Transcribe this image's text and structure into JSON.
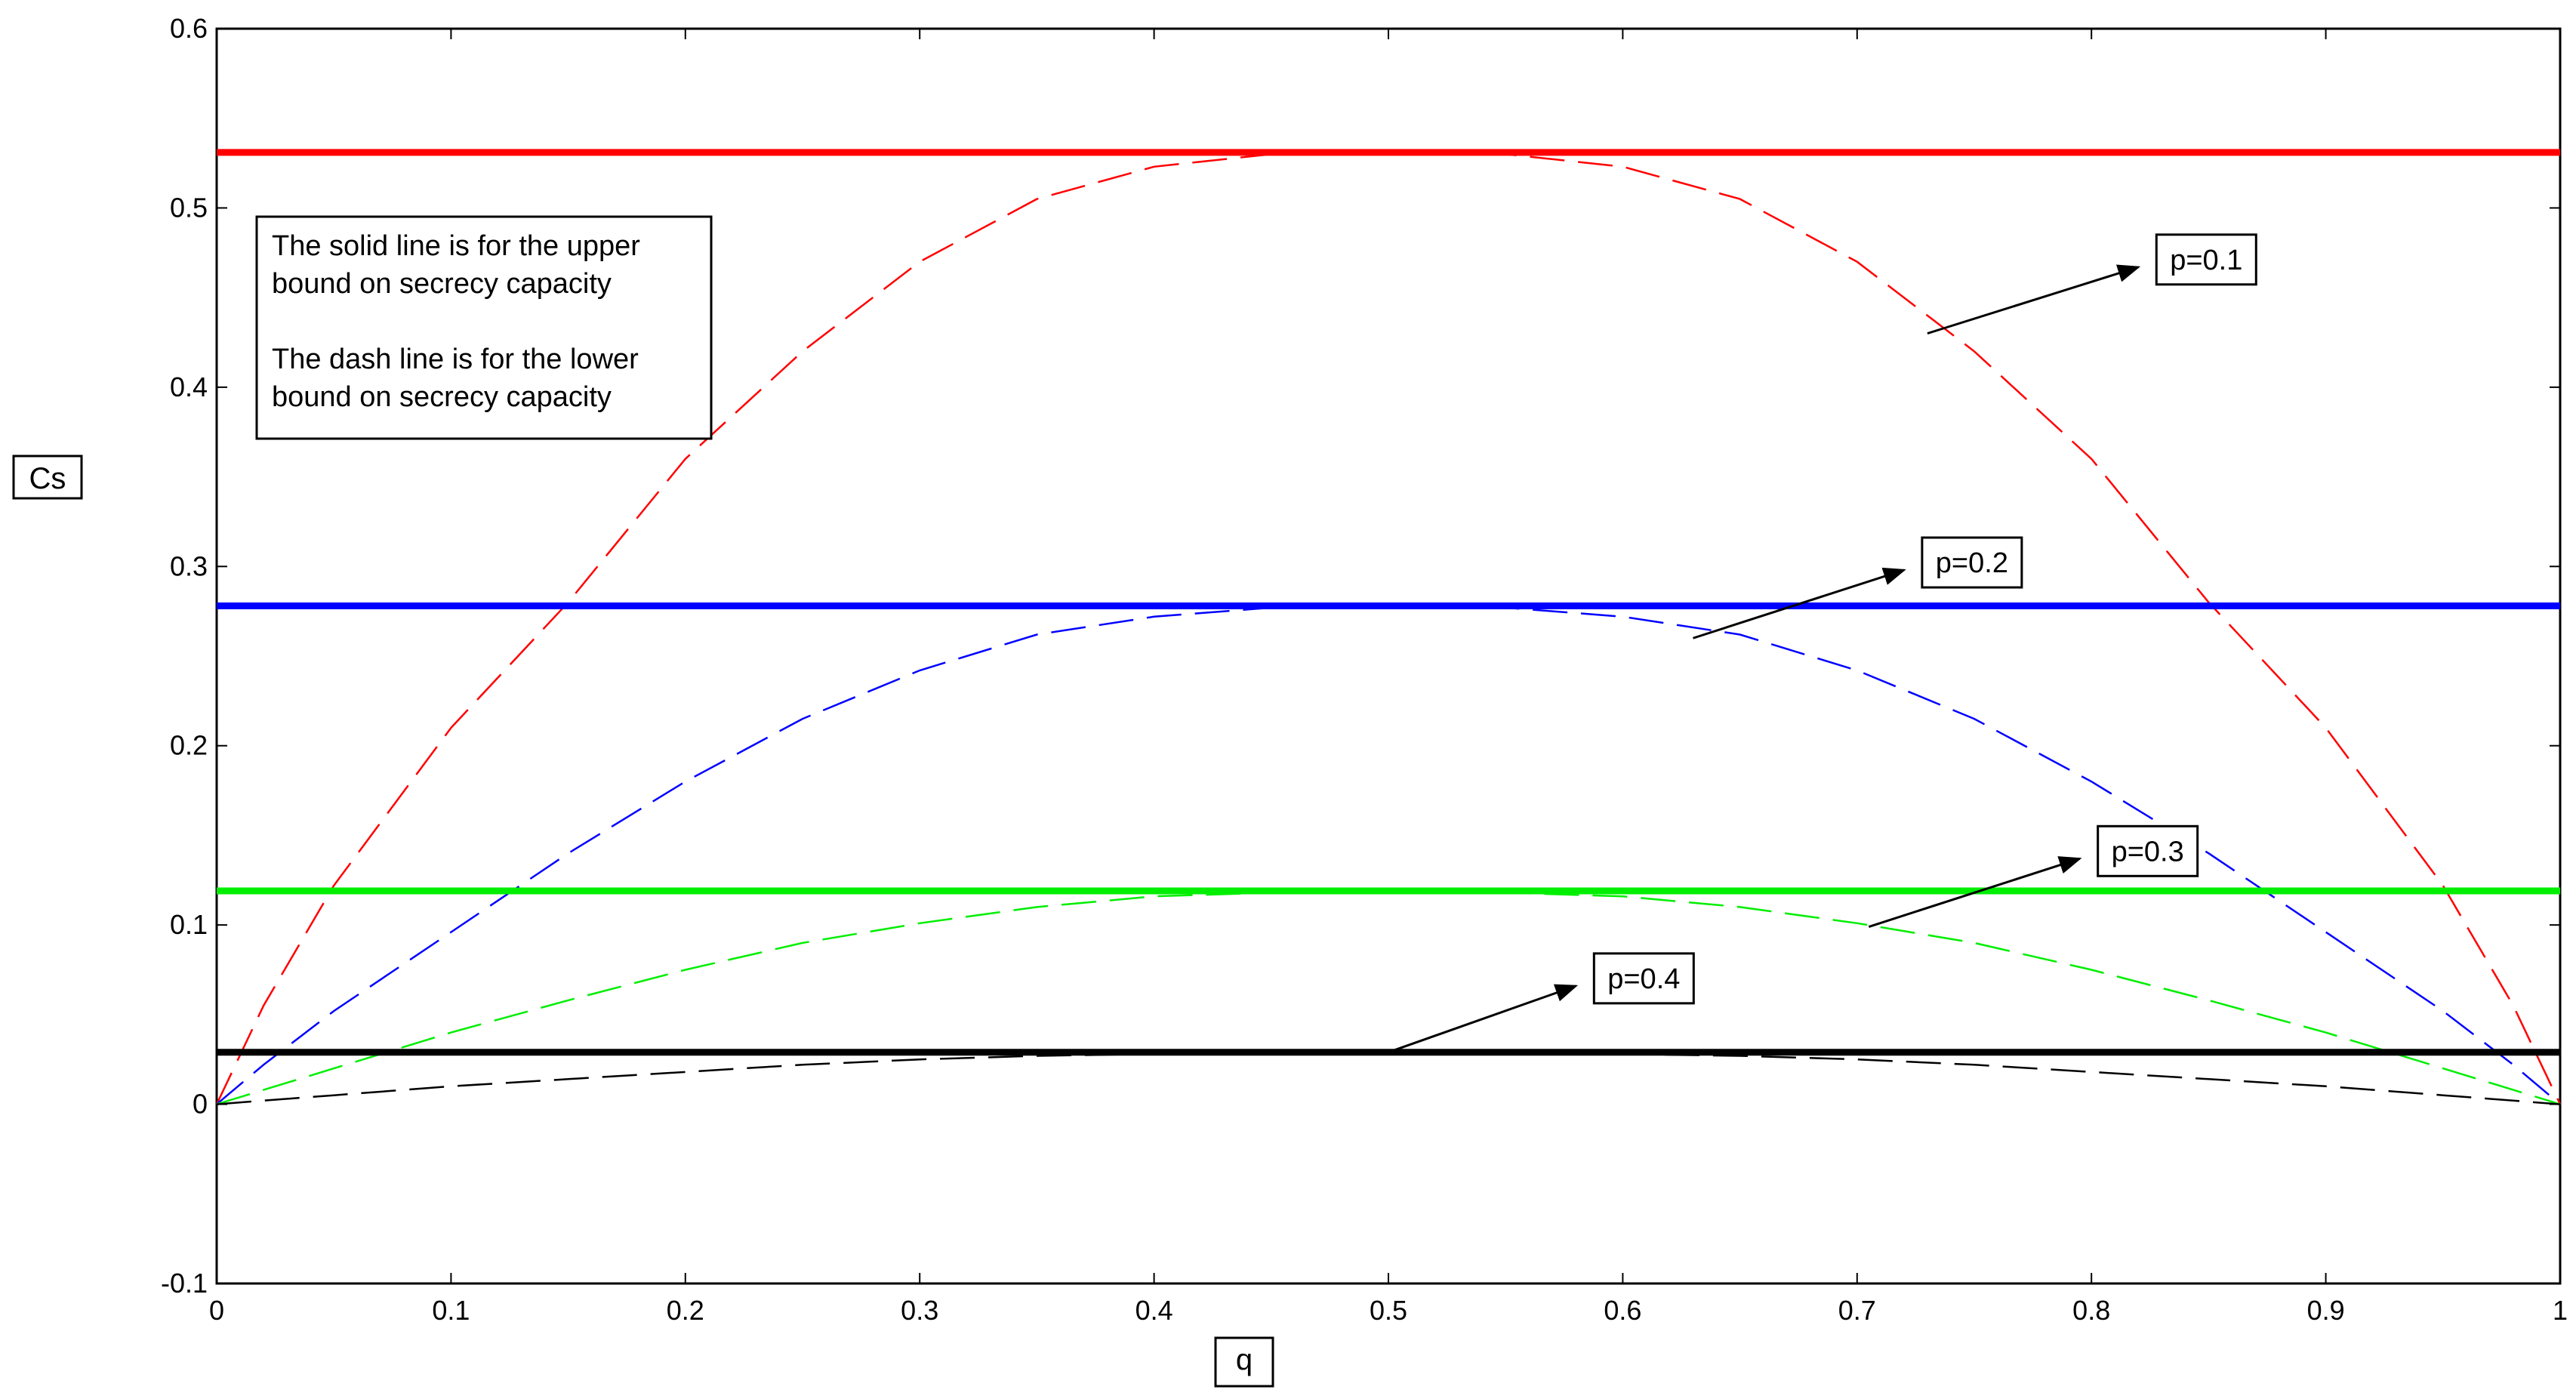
{
  "chart_data": {
    "type": "line",
    "title": "",
    "xlabel": "q",
    "ylabel": "Cs",
    "xlim": [
      0,
      1
    ],
    "ylim": [
      -0.1,
      0.6
    ],
    "x_ticks": [
      0,
      0.1,
      0.2,
      0.3,
      0.4,
      0.5,
      0.6,
      0.7,
      0.8,
      0.9,
      1
    ],
    "x_tick_labels": [
      "0",
      "0.1",
      "0.2",
      "0.3",
      "0.4",
      "0.5",
      "0.6",
      "0.7",
      "0.8",
      "0.9",
      "1"
    ],
    "y_ticks": [
      -0.1,
      0,
      0.1,
      0.2,
      0.3,
      0.4,
      0.5,
      0.6
    ],
    "y_tick_labels": [
      "-0.1",
      "0",
      "0.1",
      "0.2",
      "0.3",
      "0.4",
      "0.5",
      "0.6"
    ],
    "grid": false,
    "note_lines": [
      "The solid line is for the upper",
      "bound on secrecy capacity",
      "",
      "The dash line is for the lower",
      "bound on secrecy capacity"
    ],
    "annotations": [
      {
        "text": "p=0.1",
        "from": [
          0.73,
          0.43
        ],
        "to": [
          0.82,
          0.467
        ]
      },
      {
        "text": "p=0.2",
        "from": [
          0.63,
          0.26
        ],
        "to": [
          0.72,
          0.298
        ]
      },
      {
        "text": "p=0.3",
        "from": [
          0.705,
          0.099
        ],
        "to": [
          0.795,
          0.137
        ]
      },
      {
        "text": "p=0.4",
        "from": [
          0.5,
          0.029
        ],
        "to": [
          0.58,
          0.066
        ]
      }
    ],
    "series": [
      {
        "p": 0.1,
        "color": "#ff0000",
        "upper_bound": 0.531,
        "lower_bound": {
          "x": [
            0,
            0.02,
            0.05,
            0.1,
            0.15,
            0.2,
            0.25,
            0.3,
            0.35,
            0.4,
            0.45,
            0.5,
            0.55,
            0.6,
            0.65,
            0.7,
            0.75,
            0.8,
            0.85,
            0.9,
            0.95,
            0.98,
            1
          ],
          "y": [
            0,
            0.055,
            0.122,
            0.21,
            0.28,
            0.36,
            0.42,
            0.47,
            0.505,
            0.523,
            0.53,
            0.531,
            0.53,
            0.523,
            0.505,
            0.47,
            0.42,
            0.36,
            0.28,
            0.21,
            0.122,
            0.055,
            0
          ]
        }
      },
      {
        "p": 0.2,
        "color": "#0000ff",
        "upper_bound": 0.278,
        "lower_bound": {
          "x": [
            0,
            0.02,
            0.05,
            0.1,
            0.15,
            0.2,
            0.25,
            0.3,
            0.35,
            0.4,
            0.45,
            0.5,
            0.55,
            0.6,
            0.65,
            0.7,
            0.75,
            0.8,
            0.85,
            0.9,
            0.95,
            0.98,
            1
          ],
          "y": [
            0,
            0.022,
            0.052,
            0.096,
            0.14,
            0.18,
            0.215,
            0.242,
            0.262,
            0.272,
            0.277,
            0.278,
            0.277,
            0.272,
            0.262,
            0.242,
            0.215,
            0.18,
            0.14,
            0.096,
            0.052,
            0.022,
            0
          ]
        }
      },
      {
        "p": 0.3,
        "color": "#00ee00",
        "upper_bound": 0.119,
        "lower_bound": {
          "x": [
            0,
            0.02,
            0.05,
            0.1,
            0.15,
            0.2,
            0.25,
            0.3,
            0.35,
            0.4,
            0.45,
            0.5,
            0.55,
            0.6,
            0.65,
            0.7,
            0.75,
            0.8,
            0.85,
            0.9,
            0.95,
            0.98,
            1
          ],
          "y": [
            0,
            0.008,
            0.02,
            0.04,
            0.058,
            0.075,
            0.09,
            0.101,
            0.11,
            0.116,
            0.118,
            0.119,
            0.118,
            0.116,
            0.11,
            0.101,
            0.09,
            0.075,
            0.058,
            0.04,
            0.02,
            0.008,
            0
          ]
        }
      },
      {
        "p": 0.4,
        "color": "#000000",
        "upper_bound": 0.029,
        "lower_bound": {
          "x": [
            0,
            0.02,
            0.05,
            0.1,
            0.15,
            0.2,
            0.25,
            0.3,
            0.35,
            0.4,
            0.45,
            0.5,
            0.55,
            0.6,
            0.65,
            0.7,
            0.75,
            0.8,
            0.85,
            0.9,
            0.95,
            0.98,
            1
          ],
          "y": [
            0,
            0.002,
            0.005,
            0.01,
            0.014,
            0.018,
            0.022,
            0.025,
            0.027,
            0.028,
            0.029,
            0.029,
            0.029,
            0.028,
            0.027,
            0.025,
            0.022,
            0.018,
            0.014,
            0.01,
            0.005,
            0.002,
            0
          ]
        }
      }
    ]
  }
}
